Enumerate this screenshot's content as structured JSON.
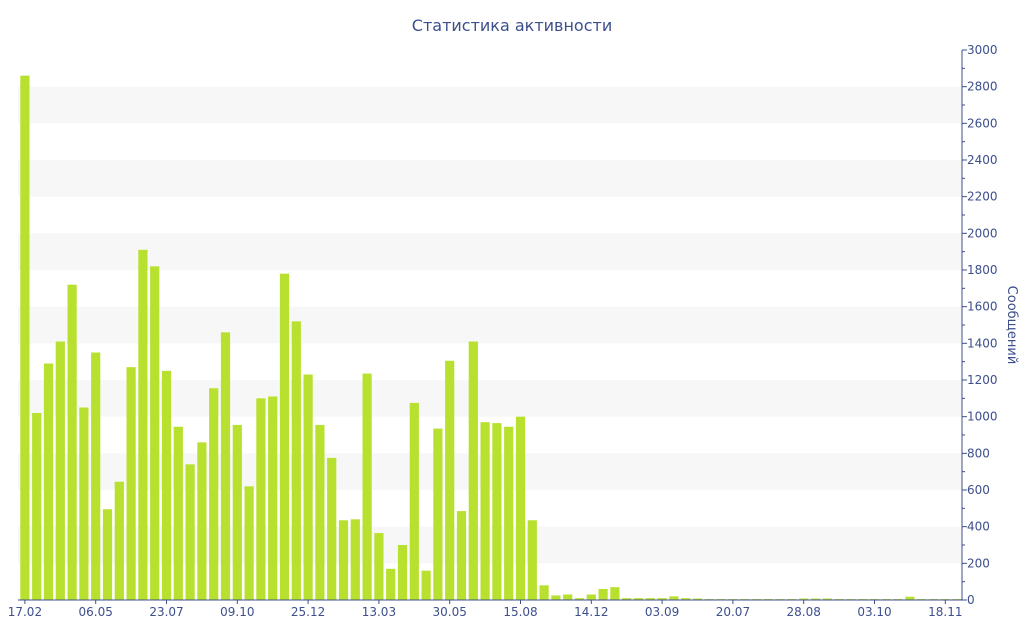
{
  "chart_data": {
    "type": "bar",
    "title": "Статистика активности",
    "ylabel": "Сообщений",
    "ylim": [
      0,
      3000
    ],
    "yticks": [
      0,
      200,
      400,
      600,
      800,
      1000,
      1200,
      1400,
      1600,
      1800,
      2000,
      2200,
      2400,
      2600,
      2800,
      3000
    ],
    "x_tick_labels": [
      {
        "index": 0,
        "label": "17.02"
      },
      {
        "index": 6,
        "label": "06.05"
      },
      {
        "index": 12,
        "label": "23.07"
      },
      {
        "index": 18,
        "label": "09.10"
      },
      {
        "index": 24,
        "label": "25.12"
      },
      {
        "index": 30,
        "label": "13.03"
      },
      {
        "index": 36,
        "label": "30.05"
      },
      {
        "index": 42,
        "label": "15.08"
      },
      {
        "index": 48,
        "label": "14.12"
      },
      {
        "index": 54,
        "label": "03.09"
      },
      {
        "index": 60,
        "label": "20.07"
      },
      {
        "index": 66,
        "label": "28.08"
      },
      {
        "index": 72,
        "label": "03.10"
      },
      {
        "index": 78,
        "label": "18.11"
      }
    ],
    "values": [
      2860,
      1020,
      1290,
      1410,
      1720,
      1050,
      1350,
      495,
      645,
      1270,
      1910,
      1820,
      1250,
      945,
      740,
      860,
      1155,
      1460,
      955,
      620,
      1100,
      1110,
      1780,
      1520,
      1230,
      955,
      775,
      435,
      440,
      1235,
      365,
      170,
      300,
      1075,
      160,
      935,
      1305,
      485,
      1410,
      970,
      965,
      945,
      1000,
      435,
      80,
      25,
      30,
      10,
      30,
      60,
      70,
      10,
      10,
      10,
      10,
      20,
      10,
      8,
      5,
      5,
      5,
      5,
      5,
      5,
      5,
      5,
      8,
      8,
      8,
      5,
      5,
      5,
      5,
      5,
      5,
      18,
      5,
      5,
      5,
      5
    ],
    "bar_color": "#b8e02e",
    "band_color": "#f7f7f7",
    "text_color": "#3d4f8c",
    "grid": "alternating-bands",
    "y_axis_position": "right"
  }
}
